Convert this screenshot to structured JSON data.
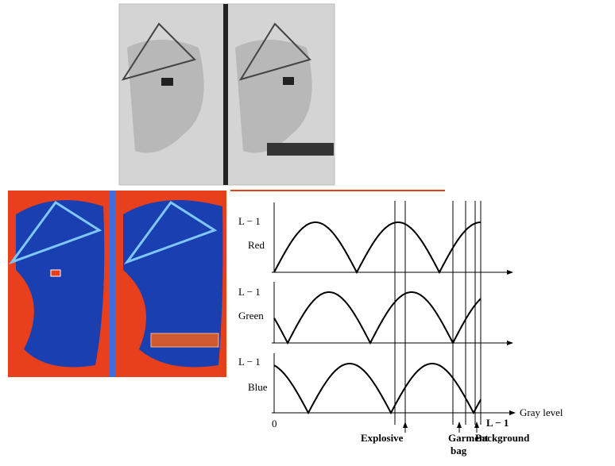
{
  "plots": [
    {
      "max_label": "L − 1",
      "channel": "Red"
    },
    {
      "max_label": "L − 1",
      "channel": "Green"
    },
    {
      "max_label": "L − 1",
      "channel": "Blue"
    }
  ],
  "axis": {
    "origin": "0",
    "x_label": "Gray level",
    "x_max_label": "L − 1"
  },
  "markers": [
    {
      "lines": [
        "Explosive"
      ]
    },
    {
      "lines": [
        "Garment",
        "bag"
      ]
    },
    {
      "lines": [
        "Background"
      ]
    }
  ]
}
